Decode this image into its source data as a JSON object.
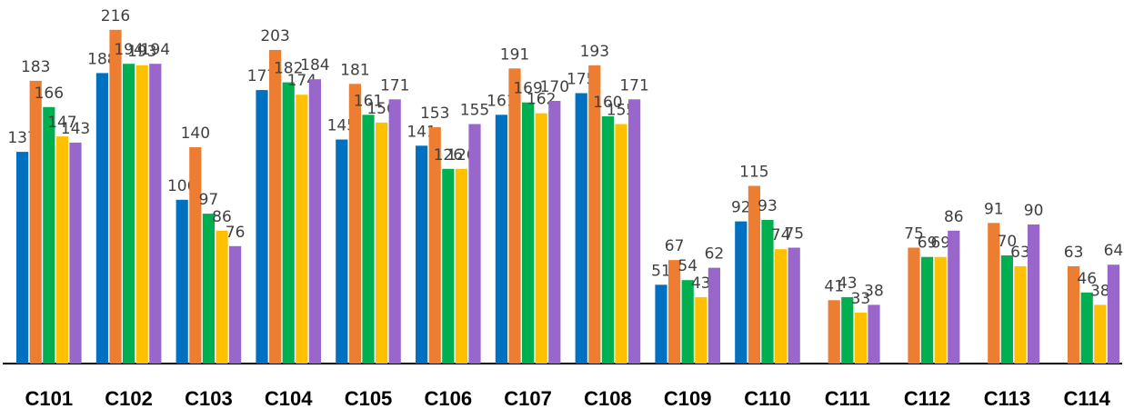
{
  "chart_data": {
    "type": "bar",
    "title": "",
    "xlabel": "",
    "ylabel": "",
    "ylim": [
      0,
      230
    ],
    "grid": false,
    "legend": "none",
    "categories": [
      "C101",
      "C102",
      "C103",
      "C104",
      "C105",
      "C106",
      "C107",
      "C108",
      "C109",
      "C110",
      "C111",
      "C112",
      "C113",
      "C114"
    ],
    "series": [
      {
        "color": "#0070C0",
        "values": [
          137,
          188,
          106,
          177,
          145,
          141,
          161,
          175,
          51,
          92,
          null,
          null,
          null,
          null
        ]
      },
      {
        "color": "#ED7D31",
        "values": [
          183,
          216,
          140,
          203,
          181,
          153,
          191,
          193,
          67,
          115,
          41,
          75,
          91,
          63
        ]
      },
      {
        "color": "#00B050",
        "values": [
          166,
          194,
          97,
          182,
          161,
          126,
          169,
          160,
          54,
          93,
          43,
          69,
          70,
          46
        ]
      },
      {
        "color": "#FFC000",
        "values": [
          147,
          193,
          86,
          174,
          156,
          126,
          162,
          155,
          43,
          74,
          33,
          69,
          63,
          38
        ]
      },
      {
        "color": "#9966CC",
        "values": [
          143,
          194,
          76,
          184,
          171,
          155,
          170,
          171,
          62,
          75,
          38,
          86,
          90,
          64
        ]
      }
    ]
  }
}
